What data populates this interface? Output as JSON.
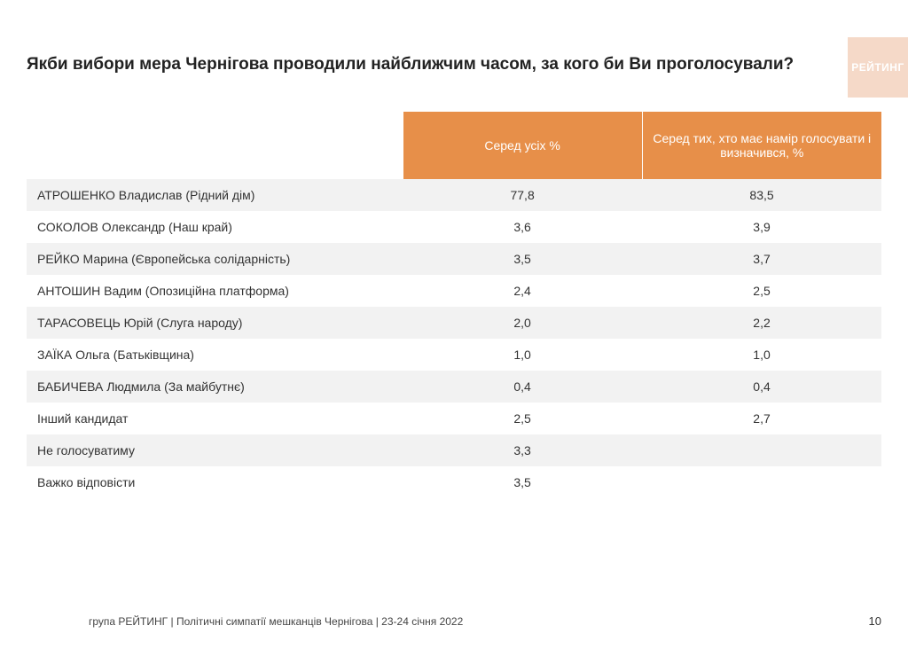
{
  "title": "Якби вибори мера Чернігова проводили найближчим часом, за кого би Ви проголосували?",
  "badge": "РЕЙТИНГ",
  "table": {
    "header_bg": "#e78f49",
    "header_fg": "#ffffff",
    "row_odd_bg": "#f2f2f2",
    "row_even_bg": "#ffffff",
    "columns": [
      "",
      "Серед усіх %",
      "Серед тих, хто має намір голосувати і визначився, %"
    ],
    "rows": [
      {
        "label": "АТРОШЕНКО Владислав (Рідний дім)",
        "c1": "77,8",
        "c2": "83,5"
      },
      {
        "label": "СОКОЛОВ Олександр (Наш край)",
        "c1": "3,6",
        "c2": "3,9"
      },
      {
        "label": "РЕЙКО Марина (Європейська солідарність)",
        "c1": "3,5",
        "c2": "3,7"
      },
      {
        "label": "АНТОШИН Вадим (Опозиційна платформа)",
        "c1": "2,4",
        "c2": "2,5"
      },
      {
        "label": "ТАРАСОВЕЦЬ Юрій (Слуга народу)",
        "c1": "2,0",
        "c2": "2,2"
      },
      {
        "label": "ЗАЇКА Ольга (Батьківщина)",
        "c1": "1,0",
        "c2": "1,0"
      },
      {
        "label": "БАБИЧЕВА Людмила (За майбутнє)",
        "c1": "0,4",
        "c2": "0,4"
      },
      {
        "label": "Інший кандидат",
        "c1": "2,5",
        "c2": "2,7"
      },
      {
        "label": "Не голосуватиму",
        "c1": "3,3",
        "c2": ""
      },
      {
        "label": "Важко відповісти",
        "c1": "3,5",
        "c2": ""
      }
    ]
  },
  "footer": "група РЕЙТИНГ  | Політичні симпатії мешканців Чернігова | 23-24 січня 2022",
  "page": "10"
}
